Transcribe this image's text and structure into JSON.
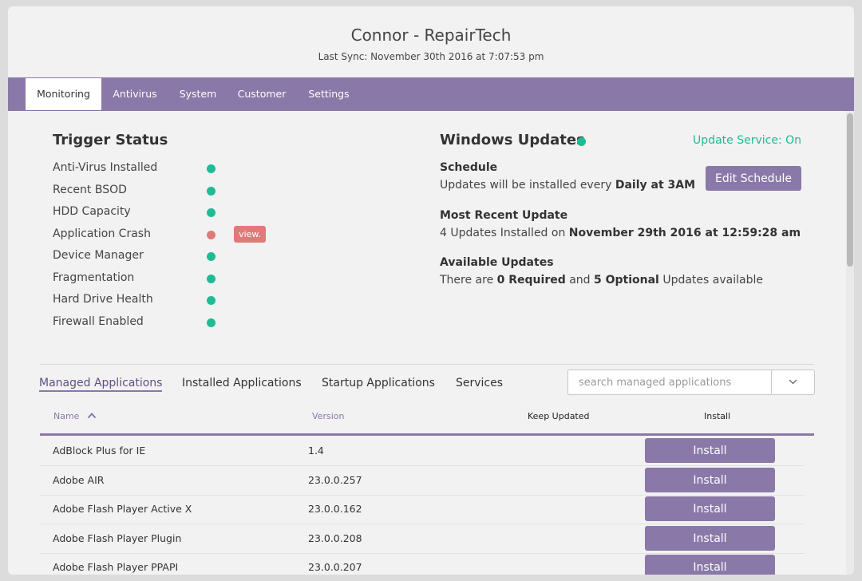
{
  "header": {
    "title": "Connor - RepairTech",
    "last_sync": "Last Sync: November 30th 2016 at 7:07:53 pm"
  },
  "tabs": [
    {
      "label": "Monitoring",
      "active": true
    },
    {
      "label": "Antivirus",
      "active": false
    },
    {
      "label": "System",
      "active": false
    },
    {
      "label": "Customer",
      "active": false
    },
    {
      "label": "Settings",
      "active": false
    }
  ],
  "trigger_status": {
    "title": "Trigger Status",
    "items": [
      {
        "label": "Anti-Virus Installed",
        "status": "ok"
      },
      {
        "label": "Recent BSOD",
        "status": "ok"
      },
      {
        "label": "HDD Capacity",
        "status": "ok"
      },
      {
        "label": "Application Crash",
        "status": "alert",
        "badge": "view."
      },
      {
        "label": "Device Manager",
        "status": "ok"
      },
      {
        "label": "Fragmentation",
        "status": "ok"
      },
      {
        "label": "Hard Drive Health",
        "status": "ok"
      },
      {
        "label": "Firewall Enabled",
        "status": "ok"
      }
    ]
  },
  "windows_updates": {
    "title": "Windows Updates",
    "status": "ok",
    "service_status": "Update Service: On",
    "schedule_label": "Schedule",
    "schedule_prefix": "Updates will be installed every ",
    "schedule_value": "Daily at 3AM",
    "edit_schedule_label": "Edit Schedule",
    "recent_label": "Most Recent Update",
    "recent_prefix": "4 Updates Installed on ",
    "recent_value": "November 29th 2016 at 12:59:28 am",
    "available_label": "Available Updates",
    "available_prefix": "There are ",
    "available_required": "0 Required",
    "available_mid": " and ",
    "available_optional": "5 Optional",
    "available_suffix": " Updates available"
  },
  "apps": {
    "subtabs": [
      {
        "label": "Managed Applications",
        "active": true
      },
      {
        "label": "Installed Applications",
        "active": false
      },
      {
        "label": "Startup Applications",
        "active": false
      },
      {
        "label": "Services",
        "active": false
      }
    ],
    "search_placeholder": "search managed applications",
    "columns": {
      "name": "Name",
      "version": "Version",
      "keep_updated": "Keep Updated",
      "install": "Install"
    },
    "rows": [
      {
        "name": "AdBlock Plus for IE",
        "version": "1.4",
        "action": "Install"
      },
      {
        "name": "Adobe AIR",
        "version": "23.0.0.257",
        "action": "Install"
      },
      {
        "name": "Adobe Flash Player Active X",
        "version": "23.0.0.162",
        "action": "Install"
      },
      {
        "name": "Adobe Flash Player Plugin",
        "version": "23.0.0.208",
        "action": "Install"
      },
      {
        "name": "Adobe Flash Player PPAPI",
        "version": "23.0.0.207",
        "action": "Install"
      }
    ]
  },
  "colors": {
    "accent": "#8a78a8",
    "ok": "#1fbb94",
    "alert": "#e07a7a"
  }
}
